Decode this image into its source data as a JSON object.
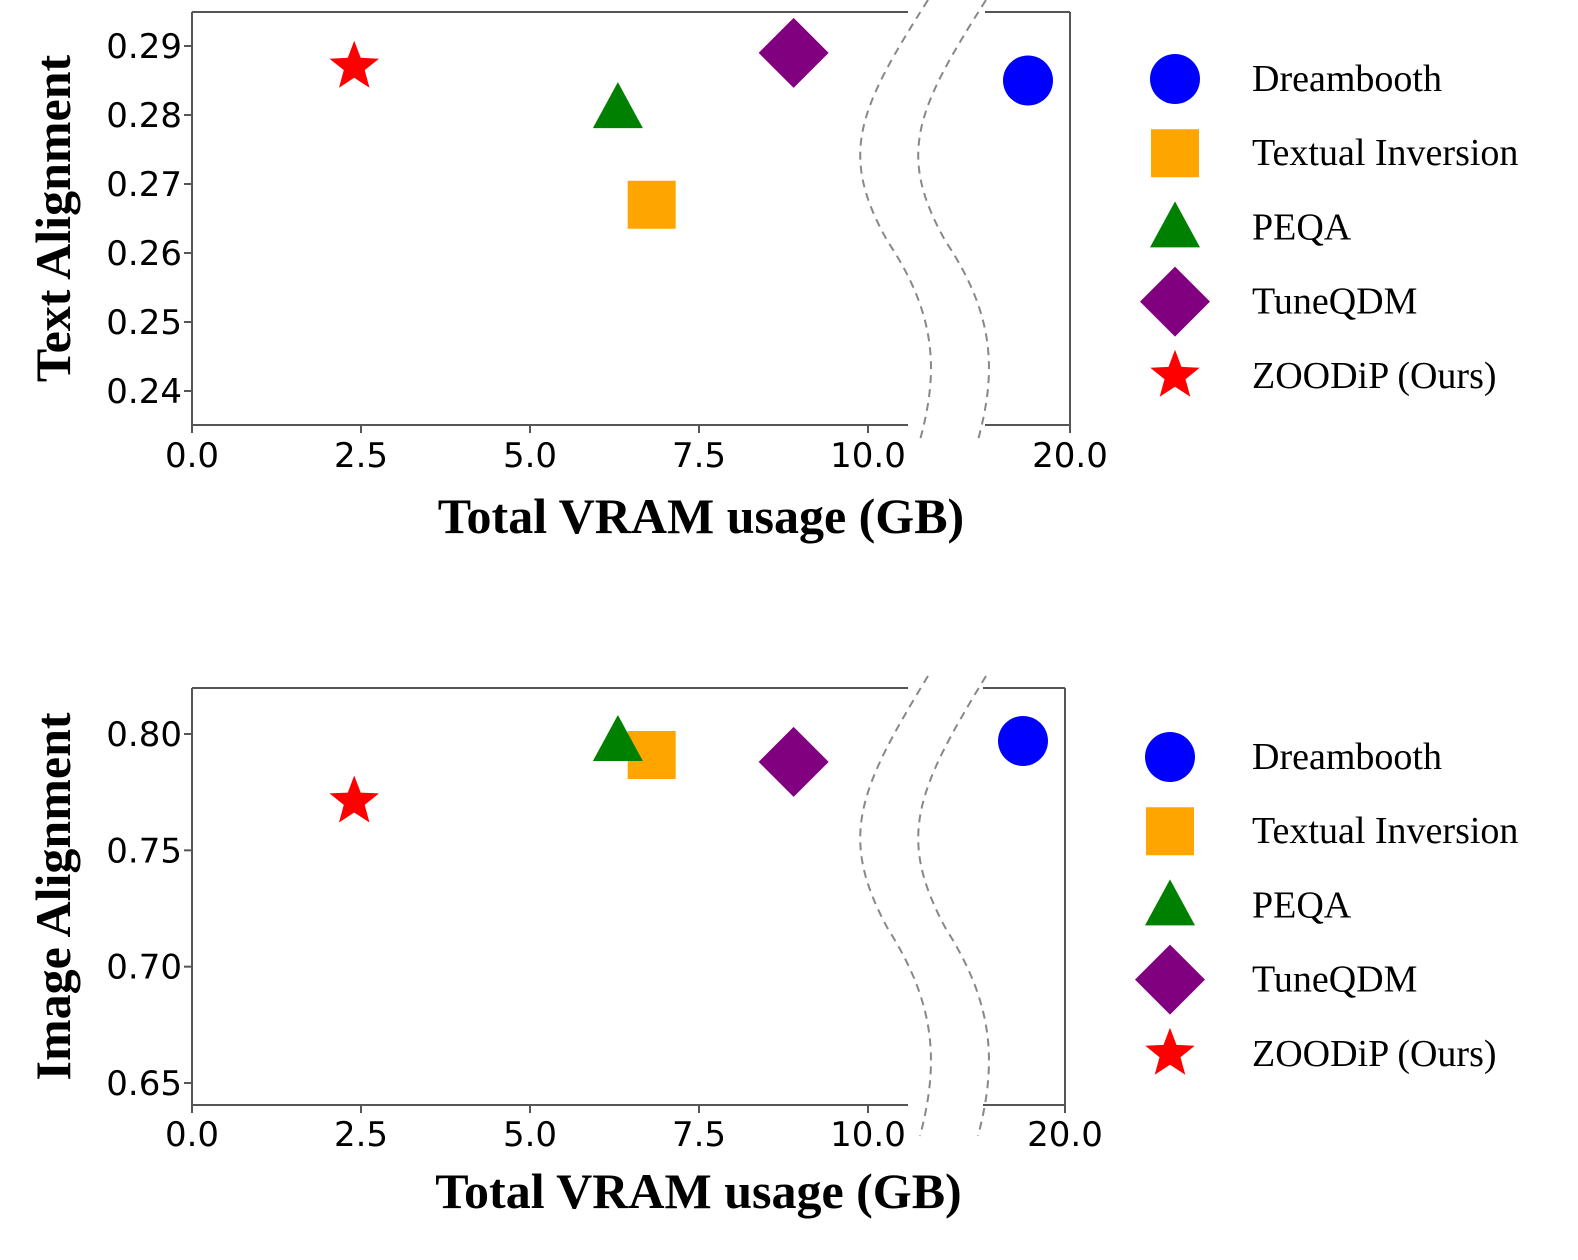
{
  "chart_data": [
    {
      "type": "scatter",
      "xlabel": "Total VRAM usage (GB)",
      "ylabel": "Text Alignment",
      "xticks": [
        "0.0",
        "2.5",
        "5.0",
        "7.5",
        "10.0",
        "20.0"
      ],
      "yticks": [
        "0.24",
        "0.25",
        "0.26",
        "0.27",
        "0.28",
        "0.29"
      ],
      "xlim": [
        0,
        10.6
      ],
      "x_break": "broken x-axis between 10.0 and 20.0",
      "x_right_lim": [
        19.0,
        20.0
      ],
      "ylim": [
        0.235,
        0.295
      ],
      "series": [
        {
          "name": "Dreambooth",
          "marker": "circle",
          "color": "#0000FF",
          "x": 19.4,
          "y": 0.285
        },
        {
          "name": "Textual Inversion",
          "marker": "square",
          "color": "#FFA500",
          "x": 6.8,
          "y": 0.267
        },
        {
          "name": "PEQA",
          "marker": "triangle",
          "color": "#008000",
          "x": 6.3,
          "y": 0.281
        },
        {
          "name": "TuneQDM",
          "marker": "diamond",
          "color": "#800080",
          "x": 8.9,
          "y": 0.289
        },
        {
          "name": "ZOODiP (Ours)",
          "marker": "star",
          "color": "#FF0000",
          "x": 2.4,
          "y": 0.287
        }
      ],
      "legend": "right"
    },
    {
      "type": "scatter",
      "xlabel": "Total VRAM usage (GB)",
      "ylabel": "Image Alignment",
      "xticks": [
        "0.0",
        "2.5",
        "5.0",
        "7.5",
        "10.0",
        "20.0"
      ],
      "yticks": [
        "0.65",
        "0.70",
        "0.75",
        "0.80"
      ],
      "xlim": [
        0,
        10.6
      ],
      "x_break": "broken x-axis between 10.0 and 20.0",
      "x_right_lim": [
        19.0,
        20.0
      ],
      "ylim": [
        0.64,
        0.82
      ],
      "series": [
        {
          "name": "Dreambooth",
          "marker": "circle",
          "color": "#0000FF",
          "x": 19.4,
          "y": 0.797
        },
        {
          "name": "Textual Inversion",
          "marker": "square",
          "color": "#FFA500",
          "x": 6.8,
          "y": 0.791
        },
        {
          "name": "PEQA",
          "marker": "triangle",
          "color": "#008000",
          "x": 6.3,
          "y": 0.797
        },
        {
          "name": "TuneQDM",
          "marker": "diamond",
          "color": "#800080",
          "x": 8.9,
          "y": 0.788
        },
        {
          "name": "ZOODiP (Ours)",
          "marker": "star",
          "color": "#FF0000",
          "x": 2.4,
          "y": 0.771
        }
      ],
      "legend": "right"
    }
  ]
}
